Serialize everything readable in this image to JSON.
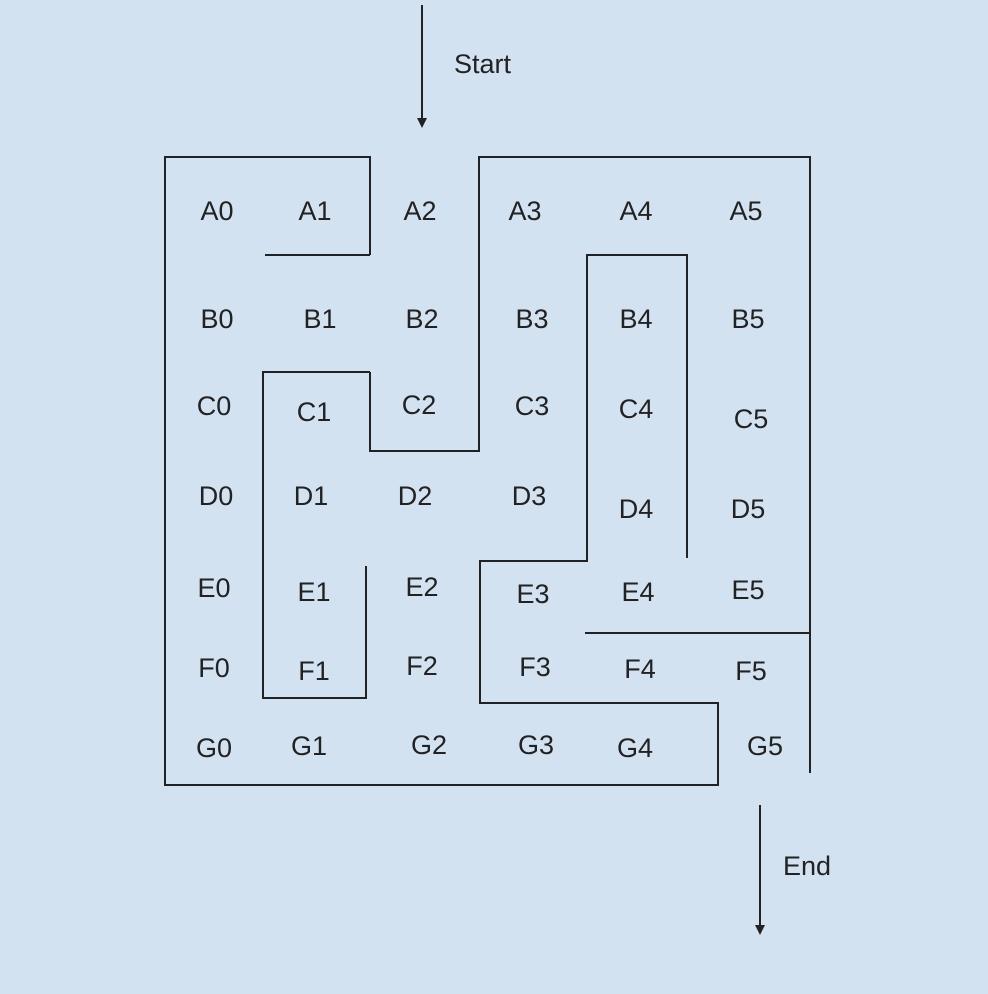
{
  "start_label": "Start",
  "end_label": "End",
  "colors": {
    "background": "#d3e2f0",
    "ink": "#222222"
  },
  "cells": [
    [
      "A0",
      "A1",
      "A2",
      "A3",
      "A4",
      "A5"
    ],
    [
      "B0",
      "B1",
      "B2",
      "B3",
      "B4",
      "B5"
    ],
    [
      "C0",
      "C1",
      "C2",
      "C3",
      "C4",
      "C5"
    ],
    [
      "D0",
      "D1",
      "D2",
      "D3",
      "D4",
      "D5"
    ],
    [
      "E0",
      "E1",
      "E2",
      "E3",
      "E4",
      "E5"
    ],
    [
      "F0",
      "F1",
      "F2",
      "F3",
      "F4",
      "F5"
    ],
    [
      "G0",
      "G1",
      "G2",
      "G3",
      "G4",
      "G5"
    ]
  ]
}
